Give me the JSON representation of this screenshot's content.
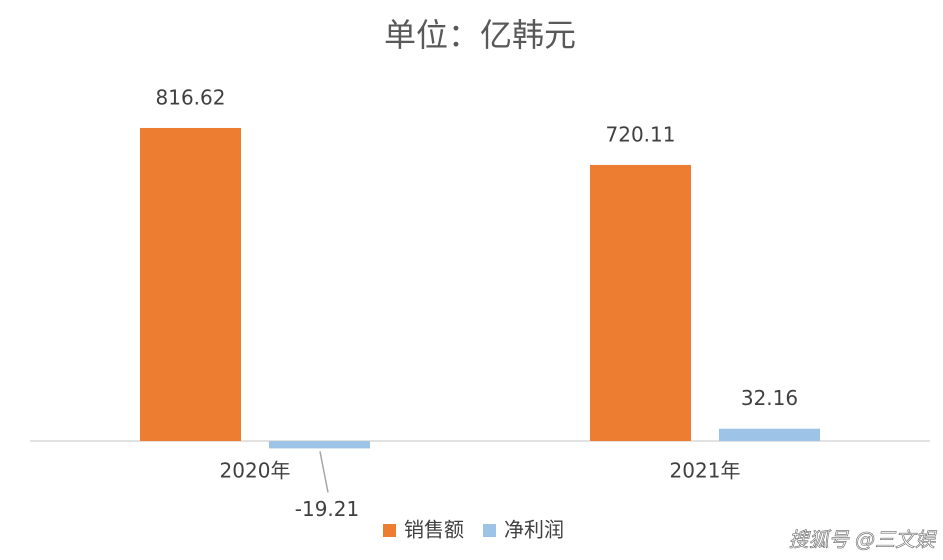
{
  "chart_data": {
    "type": "bar",
    "title": "单位：亿韩元",
    "categories": [
      "2020年",
      "2021年"
    ],
    "series": [
      {
        "name": "销售额",
        "color": "#ED7D31",
        "values": [
          816.62,
          720.11
        ]
      },
      {
        "name": "净利润",
        "color": "#9DC3E6",
        "values": [
          -19.21,
          32.16
        ]
      }
    ],
    "ylim": [
      -50,
      900
    ],
    "grid": false,
    "legend": "bottom",
    "watermark": "搜狐号 @三文娱"
  }
}
